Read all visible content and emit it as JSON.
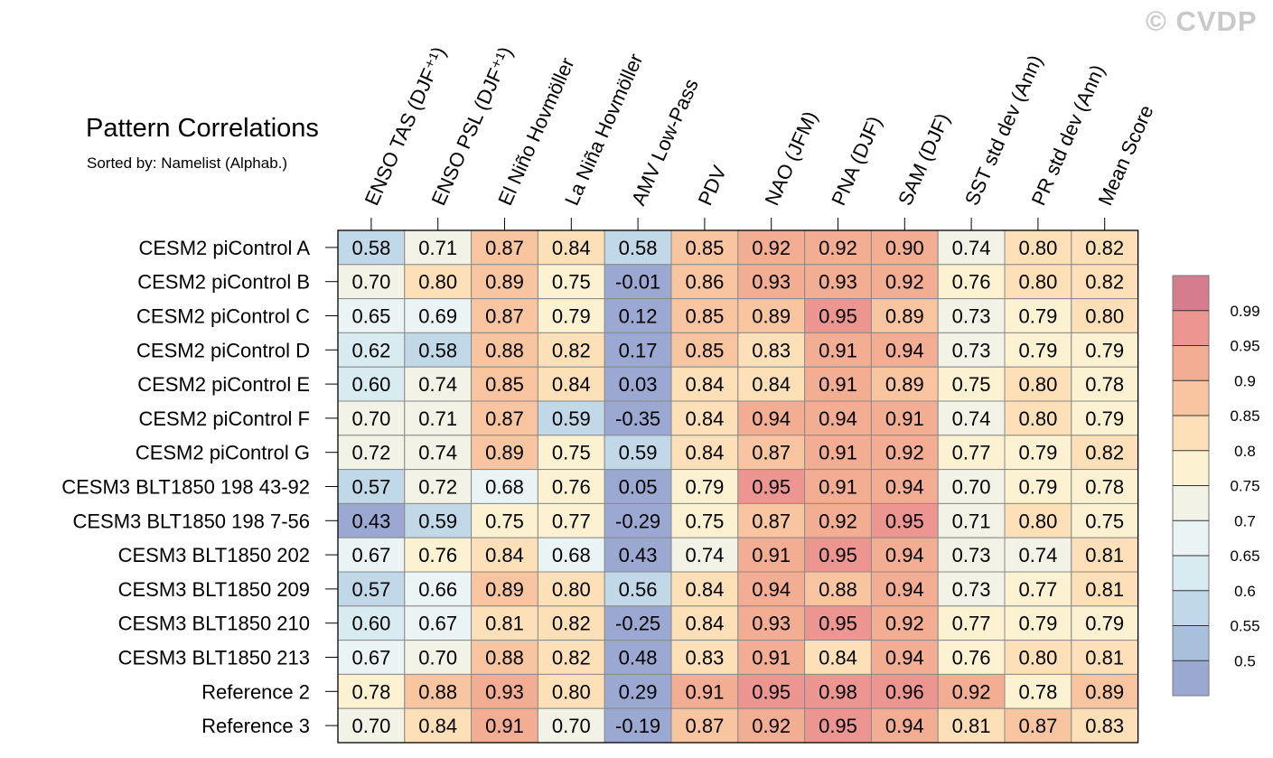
{
  "title": "Pattern Correlations",
  "subtitle": "Sorted by: Namelist (Alphab.)",
  "watermark": "© CVDP",
  "chart_data": {
    "type": "heatmap",
    "columns": [
      "ENSO TAS (DJF⁺¹)",
      "ENSO PSL (DJF⁺¹)",
      "El Niño Hovmöller",
      "La Niña Hovmöller",
      "AMV Low-Pass",
      "PDV",
      "NAO (JFM)",
      "PNA (DJF)",
      "SAM (DJF)",
      "SST std dev (Ann)",
      "PR std dev (Ann)",
      "Mean Score"
    ],
    "rows": [
      "CESM2 piControl A",
      "CESM2 piControl B",
      "CESM2 piControl C",
      "CESM2 piControl D",
      "CESM2 piControl E",
      "CESM2 piControl F",
      "CESM2 piControl G",
      "CESM3 BLT1850 198 43-92",
      "CESM3 BLT1850 198 7-56",
      "CESM3 BLT1850 202",
      "CESM3 BLT1850 209",
      "CESM3 BLT1850 210",
      "CESM3 BLT1850 213",
      "Reference 2",
      "Reference 3"
    ],
    "values": [
      [
        "0.58",
        "0.71",
        "0.87",
        "0.84",
        "0.58",
        "0.85",
        "0.92",
        "0.92",
        "0.90",
        "0.74",
        "0.80",
        "0.82"
      ],
      [
        "0.70",
        "0.80",
        "0.89",
        "0.75",
        "-0.01",
        "0.86",
        "0.93",
        "0.93",
        "0.92",
        "0.76",
        "0.80",
        "0.82"
      ],
      [
        "0.65",
        "0.69",
        "0.87",
        "0.79",
        "0.12",
        "0.85",
        "0.89",
        "0.95",
        "0.89",
        "0.73",
        "0.79",
        "0.80"
      ],
      [
        "0.62",
        "0.58",
        "0.88",
        "0.82",
        "0.17",
        "0.85",
        "0.83",
        "0.91",
        "0.94",
        "0.73",
        "0.79",
        "0.79"
      ],
      [
        "0.60",
        "0.74",
        "0.85",
        "0.84",
        "0.03",
        "0.84",
        "0.84",
        "0.91",
        "0.89",
        "0.75",
        "0.80",
        "0.78"
      ],
      [
        "0.70",
        "0.71",
        "0.87",
        "0.59",
        "-0.35",
        "0.84",
        "0.94",
        "0.94",
        "0.91",
        "0.74",
        "0.80",
        "0.79"
      ],
      [
        "0.72",
        "0.74",
        "0.89",
        "0.75",
        "0.59",
        "0.84",
        "0.87",
        "0.91",
        "0.92",
        "0.77",
        "0.79",
        "0.82"
      ],
      [
        "0.57",
        "0.72",
        "0.68",
        "0.76",
        "0.05",
        "0.79",
        "0.95",
        "0.91",
        "0.94",
        "0.70",
        "0.79",
        "0.78"
      ],
      [
        "0.43",
        "0.59",
        "0.75",
        "0.77",
        "-0.29",
        "0.75",
        "0.87",
        "0.92",
        "0.95",
        "0.71",
        "0.80",
        "0.75"
      ],
      [
        "0.67",
        "0.76",
        "0.84",
        "0.68",
        "0.43",
        "0.74",
        "0.91",
        "0.95",
        "0.94",
        "0.73",
        "0.74",
        "0.81"
      ],
      [
        "0.57",
        "0.66",
        "0.89",
        "0.80",
        "0.56",
        "0.84",
        "0.94",
        "0.88",
        "0.94",
        "0.73",
        "0.77",
        "0.81"
      ],
      [
        "0.60",
        "0.67",
        "0.81",
        "0.82",
        "-0.25",
        "0.84",
        "0.93",
        "0.95",
        "0.92",
        "0.77",
        "0.79",
        "0.79"
      ],
      [
        "0.67",
        "0.70",
        "0.88",
        "0.82",
        "0.48",
        "0.83",
        "0.91",
        "0.84",
        "0.94",
        "0.76",
        "0.80",
        "0.81"
      ],
      [
        "0.78",
        "0.88",
        "0.93",
        "0.80",
        "0.29",
        "0.91",
        "0.95",
        "0.98",
        "0.96",
        "0.92",
        "0.78",
        "0.89"
      ],
      [
        "0.70",
        "0.84",
        "0.91",
        "0.70",
        "-0.19",
        "0.87",
        "0.92",
        "0.95",
        "0.94",
        "0.81",
        "0.87",
        "0.83"
      ]
    ],
    "colorbar": {
      "levels": [
        "0.5",
        "0.55",
        "0.6",
        "0.65",
        "0.7",
        "0.75",
        "0.8",
        "0.85",
        "0.9",
        "0.95",
        "0.99"
      ],
      "colors": [
        "#9aa8d2",
        "#a9c0dd",
        "#c0d8e8",
        "#d8ebf1",
        "#eaf4f4",
        "#f2f2e6",
        "#fcf1d0",
        "#fde0b8",
        "#f8c5a0",
        "#f3ad92",
        "#ec9591",
        "#d57d8f"
      ]
    }
  }
}
